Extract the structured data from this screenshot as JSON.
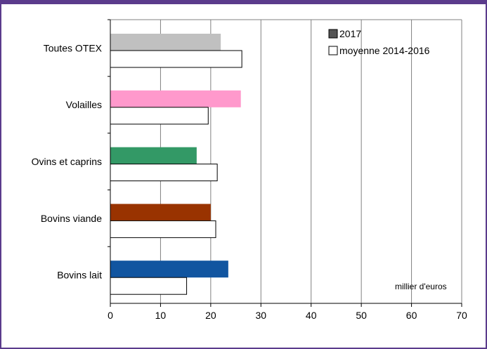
{
  "chart_data": {
    "type": "bar",
    "orientation": "horizontal",
    "categories": [
      "Toutes OTEX",
      "Volailles",
      "Ovins et caprins",
      "Bovins viande",
      "Bovins lait"
    ],
    "series": [
      {
        "name": "2017",
        "values": [
          22,
          26,
          17.2,
          20,
          23.5
        ],
        "colors": [
          "#c0c0c0",
          "#ff99cc",
          "#339966",
          "#993300",
          "#1155a0"
        ]
      },
      {
        "name": "moyenne 2014-2016",
        "values": [
          26.2,
          19.5,
          21.3,
          21,
          15.2
        ],
        "colors": [
          "#ffffff",
          "#ffffff",
          "#ffffff",
          "#ffffff",
          "#ffffff"
        ]
      }
    ],
    "xlim": [
      0,
      70
    ],
    "xticks": [
      0,
      10,
      20,
      30,
      40,
      50,
      60,
      70
    ],
    "unit_label": "millier d'euros",
    "grid": true,
    "legend_position": "top-right"
  }
}
